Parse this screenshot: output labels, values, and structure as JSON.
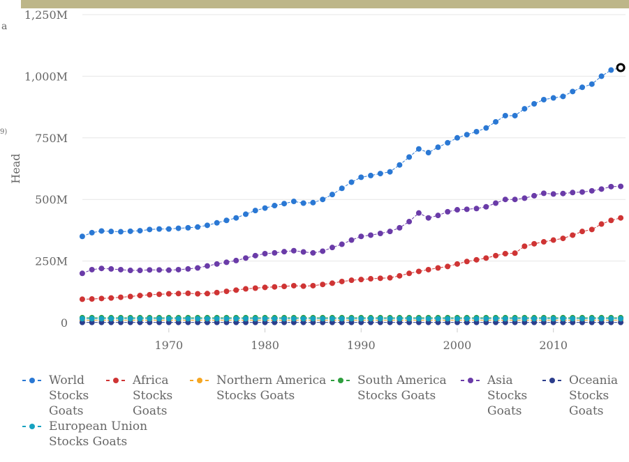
{
  "chart_data": {
    "type": "line",
    "y_label": "Head",
    "x": [
      1961,
      1962,
      1963,
      1964,
      1965,
      1966,
      1967,
      1968,
      1969,
      1970,
      1971,
      1972,
      1973,
      1974,
      1975,
      1976,
      1977,
      1978,
      1979,
      1980,
      1981,
      1982,
      1983,
      1984,
      1985,
      1986,
      1987,
      1988,
      1989,
      1990,
      1991,
      1992,
      1993,
      1994,
      1995,
      1996,
      1997,
      1998,
      1999,
      2000,
      2001,
      2002,
      2003,
      2004,
      2005,
      2006,
      2007,
      2008,
      2009,
      2010,
      2011,
      2012,
      2013,
      2014,
      2015,
      2016,
      2017
    ],
    "xlim": [
      1960.5,
      2017.5
    ],
    "xticks": [
      1970,
      1980,
      1990,
      2000,
      2010
    ],
    "ylim": [
      0,
      1250
    ],
    "yticks": [
      0,
      {
        "value": 250,
        "label": "250M"
      },
      {
        "value": 500,
        "label": "500M"
      },
      {
        "value": 750,
        "label": "750M"
      },
      {
        "value": 1000,
        "label": "1,000M"
      },
      {
        "value": 1250,
        "label": "1,250M"
      }
    ],
    "grid": true,
    "series": [
      {
        "name": "World Stocks Goats",
        "color": "#2a78d4",
        "values": [
          350,
          365,
          372,
          370,
          369,
          371,
          373,
          378,
          380,
          380,
          383,
          385,
          388,
          395,
          405,
          415,
          425,
          440,
          455,
          465,
          475,
          483,
          492,
          485,
          487,
          500,
          520,
          545,
          570,
          590,
          597,
          605,
          612,
          640,
          672,
          705,
          690,
          712,
          730,
          750,
          763,
          775,
          790,
          815,
          840,
          840,
          868,
          888,
          905,
          912,
          918,
          938,
          955,
          968,
          1000,
          1025,
          1035
        ]
      },
      {
        "name": "Africa Stocks Goats",
        "color": "#cf3434",
        "values": [
          95,
          96,
          98,
          100,
          103,
          106,
          110,
          113,
          115,
          117,
          118,
          119,
          117,
          118,
          122,
          127,
          132,
          137,
          140,
          143,
          145,
          147,
          150,
          148,
          150,
          155,
          160,
          167,
          172,
          175,
          178,
          180,
          182,
          190,
          200,
          208,
          215,
          222,
          228,
          238,
          248,
          255,
          262,
          272,
          280,
          282,
          310,
          320,
          328,
          335,
          342,
          355,
          370,
          378,
          400,
          415,
          425
        ]
      },
      {
        "name": "Northern America Stocks Goats",
        "color": "#f5a623",
        "values": [
          10,
          10,
          10,
          10,
          10,
          10,
          10,
          10,
          10,
          10,
          10,
          10,
          10,
          10,
          10,
          10,
          10,
          10,
          10,
          10,
          10,
          10,
          10,
          10,
          10,
          10,
          10,
          10,
          10,
          10,
          10,
          10,
          10,
          10,
          10,
          10,
          10,
          10,
          10,
          10,
          10,
          10,
          10,
          10,
          10,
          10,
          10,
          10,
          10,
          10,
          10,
          10,
          10,
          10,
          10,
          10,
          10
        ]
      },
      {
        "name": "South America Stocks Goats",
        "color": "#2e9e3e",
        "values": [
          20,
          20,
          20,
          20,
          20,
          20,
          20,
          20,
          20,
          20,
          20,
          20,
          20,
          20,
          20,
          20,
          20,
          20,
          20,
          20,
          20,
          20,
          20,
          20,
          20,
          20,
          20,
          20,
          20,
          20,
          20,
          20,
          20,
          20,
          20,
          20,
          20,
          20,
          20,
          20,
          20,
          20,
          20,
          20,
          20,
          20,
          20,
          20,
          20,
          20,
          20,
          20,
          20,
          20,
          20,
          20,
          20
        ]
      },
      {
        "name": "Asia Stocks Goats",
        "color": "#6a3ba8",
        "values": [
          200,
          215,
          220,
          218,
          215,
          212,
          212,
          214,
          214,
          213,
          215,
          218,
          222,
          230,
          238,
          245,
          252,
          262,
          272,
          280,
          283,
          288,
          292,
          287,
          283,
          290,
          305,
          318,
          335,
          350,
          355,
          362,
          370,
          385,
          410,
          445,
          425,
          435,
          450,
          458,
          460,
          463,
          470,
          485,
          500,
          500,
          505,
          515,
          525,
          522,
          524,
          528,
          530,
          535,
          542,
          552,
          553
        ]
      },
      {
        "name": "Oceania Stocks Goats",
        "color": "#2c3e8c",
        "values": [
          1,
          1,
          1,
          1,
          1,
          1,
          1,
          1,
          1,
          1,
          1,
          1,
          1,
          1,
          1,
          1,
          1,
          1,
          1,
          1,
          1,
          1,
          1,
          1,
          1,
          1,
          1,
          1,
          1,
          1,
          1,
          1,
          1,
          1,
          1,
          1,
          1,
          1,
          1,
          1,
          1,
          1,
          1,
          1,
          1,
          1,
          1,
          1,
          1,
          1,
          1,
          1,
          1,
          1,
          1,
          1,
          1
        ]
      },
      {
        "name": "European Union Stocks Goats",
        "color": "#17a2c0",
        "values": [
          16,
          16,
          16,
          16,
          16,
          16,
          16,
          16,
          16,
          16,
          16,
          16,
          16,
          16,
          16,
          16,
          16,
          16,
          16,
          16,
          16,
          16,
          16,
          16,
          16,
          16,
          16,
          16,
          16,
          16,
          16,
          16,
          16,
          16,
          16,
          16,
          16,
          16,
          16,
          16,
          16,
          16,
          16,
          16,
          16,
          16,
          16,
          16,
          16,
          16,
          16,
          16,
          16,
          16,
          16,
          16,
          16
        ]
      }
    ]
  },
  "left_fragments": [
    "a",
    "9)"
  ]
}
